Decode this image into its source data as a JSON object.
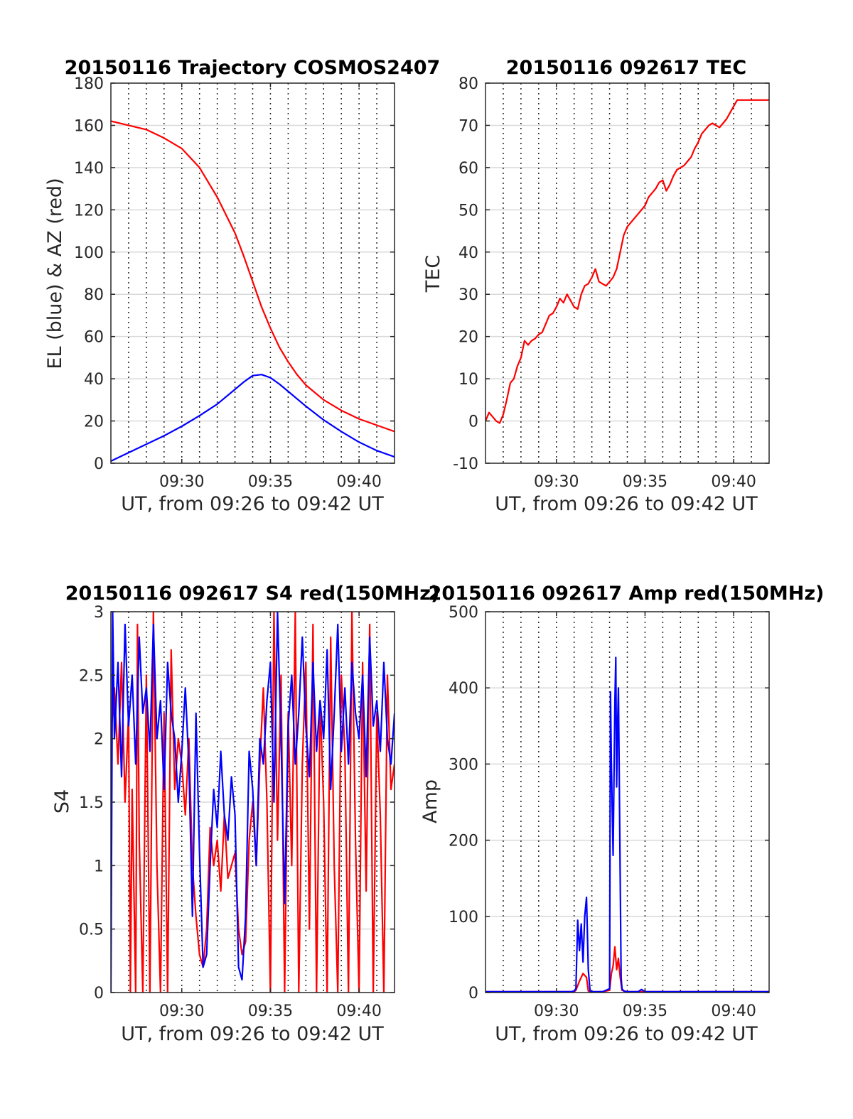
{
  "chart_data": [
    {
      "type": "line",
      "title": "20150116 Trajectory COSMOS2407",
      "xlabel": "UT, from 09:26 to 09:42 UT",
      "ylabel": "EL (blue) & AZ (red)",
      "xlim": [
        0,
        16
      ],
      "ylim": [
        0,
        180
      ],
      "xticks": [
        {
          "x": 4,
          "label": "09:30"
        },
        {
          "x": 9,
          "label": "09:35"
        },
        {
          "x": 14,
          "label": "09:40"
        }
      ],
      "yticks": [
        0,
        20,
        40,
        60,
        80,
        100,
        120,
        140,
        160,
        180
      ],
      "grid": true,
      "vlines": [
        1,
        2,
        3,
        4,
        5,
        6,
        7,
        8,
        9,
        10,
        11,
        12,
        13,
        14,
        15
      ],
      "series": [
        {
          "color": "#ff0000",
          "x": [
            0,
            1,
            2,
            3,
            4,
            5,
            6,
            7,
            7.5,
            8,
            8.5,
            9,
            9.5,
            10,
            10.5,
            11,
            12,
            13,
            14,
            15,
            16
          ],
          "y": [
            162,
            160,
            158,
            154,
            149,
            140,
            126,
            109,
            98,
            86,
            74,
            64,
            55,
            48,
            42,
            37,
            30,
            25,
            21,
            18,
            15
          ]
        },
        {
          "color": "#0000ff",
          "x": [
            0,
            1,
            2,
            3,
            4,
            5,
            6,
            7,
            7.5,
            8,
            8.5,
            9,
            9.5,
            10,
            11,
            12,
            13,
            14,
            15,
            16
          ],
          "y": [
            1,
            5,
            9,
            13,
            17.5,
            22.5,
            28,
            35,
            38.5,
            41.5,
            42,
            40.5,
            37.5,
            34,
            27,
            20.5,
            15,
            10,
            6,
            3
          ]
        }
      ]
    },
    {
      "type": "line",
      "title": "20150116 092617 TEC",
      "xlabel": "UT, from 09:26 to 09:42 UT",
      "ylabel": "TEC",
      "xlim": [
        0,
        16
      ],
      "ylim": [
        -10,
        80
      ],
      "xticks": [
        {
          "x": 4,
          "label": "09:30"
        },
        {
          "x": 9,
          "label": "09:35"
        },
        {
          "x": 14,
          "label": "09:40"
        }
      ],
      "yticks": [
        -10,
        0,
        10,
        20,
        30,
        40,
        50,
        60,
        70,
        80
      ],
      "grid": true,
      "vlines": [
        1,
        2,
        3,
        4,
        5,
        6,
        7,
        8,
        9,
        10,
        11,
        12,
        13,
        14,
        15
      ],
      "series": [
        {
          "color": "#ff0000",
          "x": [
            0.0,
            0.2,
            0.4,
            0.6,
            0.8,
            1.0,
            1.2,
            1.4,
            1.6,
            1.8,
            2.0,
            2.2,
            2.4,
            2.6,
            2.8,
            3.0,
            3.2,
            3.4,
            3.6,
            3.8,
            4.0,
            4.2,
            4.4,
            4.6,
            4.8,
            5.0,
            5.2,
            5.4,
            5.6,
            5.8,
            6.0,
            6.2,
            6.4,
            6.6,
            6.8,
            7.0,
            7.2,
            7.4,
            7.6,
            7.8,
            8.0,
            8.2,
            8.4,
            8.6,
            8.8,
            9.0,
            9.2,
            9.4,
            9.6,
            9.8,
            10.0,
            10.2,
            10.4,
            10.6,
            10.8,
            11.0,
            11.2,
            11.4,
            11.6,
            11.8,
            12.0,
            12.2,
            12.4,
            12.6,
            12.8,
            13.0,
            13.2,
            13.4,
            13.6,
            13.8,
            14.0,
            14.2,
            14.4,
            14.6,
            14.8,
            15.0,
            15.2,
            15.4,
            15.6,
            15.8,
            16.0
          ],
          "y": [
            0.0,
            2.0,
            1.0,
            0.0,
            -0.5,
            1.5,
            5.0,
            9.0,
            10.0,
            13.0,
            15.0,
            19.0,
            18.0,
            19.0,
            19.5,
            20.5,
            21.0,
            23.0,
            25.0,
            25.5,
            27.0,
            29.0,
            28.0,
            30.0,
            28.5,
            27.0,
            26.5,
            30.0,
            32.0,
            32.5,
            34.0,
            36.0,
            33.0,
            32.5,
            32.0,
            33.0,
            34.0,
            36.0,
            40.0,
            44.0,
            46.0,
            47.0,
            48.0,
            49.0,
            50.0,
            51.0,
            53.0,
            54.0,
            55.0,
            56.5,
            57.0,
            54.5,
            56.0,
            58.0,
            59.5,
            60.0,
            60.5,
            61.5,
            62.5,
            64.5,
            66.0,
            68.0,
            69.0,
            70.0,
            70.5,
            70.0,
            69.5,
            70.5,
            71.5,
            73.0,
            74.5,
            76.0,
            76.0,
            76.0,
            76.0,
            76.0,
            76.0,
            76.0,
            76.0,
            76.0,
            76.0
          ]
        }
      ]
    },
    {
      "type": "line",
      "title": "20150116 092617 S4 red(150MHz)",
      "xlabel": "UT, from 09:26 to 09:42 UT",
      "ylabel": "S4",
      "xlim": [
        0,
        16
      ],
      "ylim": [
        0,
        3
      ],
      "xticks": [
        {
          "x": 4,
          "label": "09:30"
        },
        {
          "x": 9,
          "label": "09:35"
        },
        {
          "x": 14,
          "label": "09:40"
        }
      ],
      "yticks": [
        0,
        0.5,
        1,
        1.5,
        2,
        2.5,
        3
      ],
      "grid": true,
      "vlines": [
        1,
        2,
        3,
        4,
        5,
        6,
        7,
        8,
        9,
        10,
        11,
        12,
        13,
        14,
        15
      ],
      "series": [
        {
          "color": "#ff0000",
          "x": [
            0.0,
            0.2,
            0.4,
            0.6,
            0.8,
            1.0,
            1.1,
            1.2,
            1.4,
            1.5,
            1.6,
            1.8,
            2.0,
            2.2,
            2.4,
            2.6,
            2.8,
            3.0,
            3.2,
            3.4,
            3.6,
            3.8,
            4.0,
            4.2,
            4.4,
            4.6,
            4.8,
            5.0,
            5.2,
            5.4,
            5.6,
            5.8,
            6.0,
            6.2,
            6.4,
            6.6,
            6.8,
            7.0,
            7.2,
            7.4,
            7.6,
            7.8,
            8.0,
            8.2,
            8.4,
            8.6,
            8.8,
            9.0,
            9.2,
            9.4,
            9.6,
            9.8,
            10.0,
            10.2,
            10.4,
            10.6,
            10.8,
            11.0,
            11.2,
            11.4,
            11.6,
            11.8,
            12.0,
            12.2,
            12.4,
            12.6,
            12.8,
            13.0,
            13.2,
            13.4,
            13.6,
            13.8,
            14.0,
            14.2,
            14.4,
            14.6,
            14.8,
            15.0,
            15.2,
            15.4,
            15.6,
            15.8,
            16.0
          ],
          "y": [
            2.0,
            2.4,
            1.8,
            2.6,
            1.5,
            2.2,
            0.0,
            1.6,
            0.0,
            2.9,
            1.2,
            0.0,
            2.5,
            0.0,
            3.0,
            1.0,
            0.0,
            2.2,
            0.0,
            2.7,
            1.6,
            2.0,
            1.8,
            1.4,
            2.0,
            1.0,
            0.6,
            0.3,
            0.2,
            0.5,
            1.3,
            1.0,
            1.2,
            0.8,
            1.4,
            0.9,
            1.0,
            1.1,
            0.5,
            0.3,
            0.4,
            1.2,
            1.5,
            1.0,
            1.8,
            2.4,
            1.5,
            0.0,
            3.0,
            1.2,
            2.5,
            0.0,
            2.2,
            1.0,
            3.0,
            0.0,
            1.8,
            2.6,
            0.5,
            2.9,
            0.0,
            2.3,
            1.5,
            0.0,
            2.8,
            1.0,
            0.0,
            2.5,
            1.9,
            0.0,
            3.0,
            1.2,
            0.0,
            2.6,
            0.8,
            2.9,
            0.0,
            2.2,
            1.4,
            0.0,
            2.5,
            1.6,
            1.8
          ]
        },
        {
          "color": "#0000ff",
          "x": [
            0.0,
            0.1,
            0.2,
            0.4,
            0.6,
            0.8,
            1.0,
            1.2,
            1.4,
            1.6,
            1.8,
            2.0,
            2.2,
            2.4,
            2.6,
            2.8,
            3.0,
            3.2,
            3.4,
            3.6,
            3.8,
            4.0,
            4.2,
            4.4,
            4.6,
            4.8,
            5.0,
            5.2,
            5.4,
            5.6,
            5.8,
            6.0,
            6.2,
            6.4,
            6.6,
            6.8,
            7.0,
            7.2,
            7.4,
            7.6,
            7.8,
            8.0,
            8.2,
            8.4,
            8.6,
            8.8,
            9.0,
            9.2,
            9.4,
            9.6,
            9.8,
            10.0,
            10.2,
            10.4,
            10.6,
            10.8,
            11.0,
            11.2,
            11.4,
            11.6,
            11.8,
            12.0,
            12.2,
            12.4,
            12.6,
            12.8,
            13.0,
            13.2,
            13.4,
            13.6,
            13.8,
            14.0,
            14.2,
            14.4,
            14.6,
            14.8,
            15.0,
            15.2,
            15.4,
            15.6,
            15.8,
            16.0
          ],
          "y": [
            0.0,
            3.0,
            2.0,
            2.6,
            1.7,
            2.9,
            2.1,
            2.5,
            1.8,
            2.8,
            2.2,
            2.4,
            1.9,
            2.9,
            2.0,
            2.3,
            1.6,
            2.6,
            2.2,
            2.0,
            1.5,
            1.9,
            2.4,
            1.8,
            0.6,
            2.2,
            1.1,
            0.2,
            0.3,
            1.0,
            1.6,
            1.3,
            1.9,
            1.4,
            1.2,
            1.7,
            1.4,
            0.2,
            0.1,
            0.6,
            1.9,
            1.6,
            1.0,
            2.0,
            1.8,
            2.3,
            2.6,
            1.5,
            3.0,
            2.0,
            0.7,
            2.1,
            2.5,
            1.8,
            2.2,
            2.8,
            2.1,
            1.7,
            2.6,
            1.9,
            2.3,
            2.0,
            2.7,
            1.6,
            2.2,
            2.9,
            1.9,
            2.4,
            1.8,
            2.6,
            2.2,
            2.0,
            2.5,
            1.7,
            2.8,
            2.1,
            2.3,
            1.9,
            2.6,
            2.0,
            1.8,
            2.2
          ]
        }
      ]
    },
    {
      "type": "line",
      "title": "20150116 092617 Amp red(150MHz)",
      "xlabel": "UT, from 09:26 to 09:42 UT",
      "ylabel": "Amp",
      "xlim": [
        0,
        16
      ],
      "ylim": [
        0,
        500
      ],
      "xticks": [
        {
          "x": 4,
          "label": "09:30"
        },
        {
          "x": 9,
          "label": "09:35"
        },
        {
          "x": 14,
          "label": "09:40"
        }
      ],
      "yticks": [
        0,
        100,
        200,
        300,
        400,
        500
      ],
      "grid": true,
      "vlines": [
        1,
        2,
        3,
        4,
        5,
        6,
        7,
        8,
        9,
        10,
        11,
        12,
        13,
        14,
        15
      ],
      "series": [
        {
          "color": "#ff0000",
          "x": [
            0,
            4.8,
            5.0,
            5.1,
            5.3,
            5.5,
            5.7,
            5.8,
            6.0,
            6.6,
            7.0,
            7.1,
            7.2,
            7.3,
            7.4,
            7.5,
            7.6,
            7.7,
            8.0,
            9.0,
            16
          ],
          "y": [
            1,
            1,
            1,
            3,
            15,
            25,
            20,
            2,
            1,
            1,
            3,
            25,
            35,
            60,
            30,
            45,
            20,
            3,
            1,
            1,
            1
          ]
        },
        {
          "color": "#0000ff",
          "x": [
            0,
            4.8,
            5.0,
            5.1,
            5.2,
            5.3,
            5.4,
            5.5,
            5.6,
            5.7,
            5.8,
            5.9,
            6.0,
            6.6,
            7.0,
            7.05,
            7.1,
            7.2,
            7.3,
            7.35,
            7.4,
            7.45,
            7.5,
            7.6,
            7.65,
            7.7,
            7.8,
            8.0,
            8.6,
            8.8,
            9.0,
            16
          ],
          "y": [
            1,
            1,
            2,
            5,
            95,
            55,
            90,
            40,
            100,
            125,
            30,
            2,
            1,
            1,
            5,
            395,
            300,
            180,
            380,
            440,
            270,
            350,
            400,
            150,
            20,
            5,
            2,
            1,
            1,
            4,
            1,
            1
          ]
        }
      ]
    }
  ]
}
